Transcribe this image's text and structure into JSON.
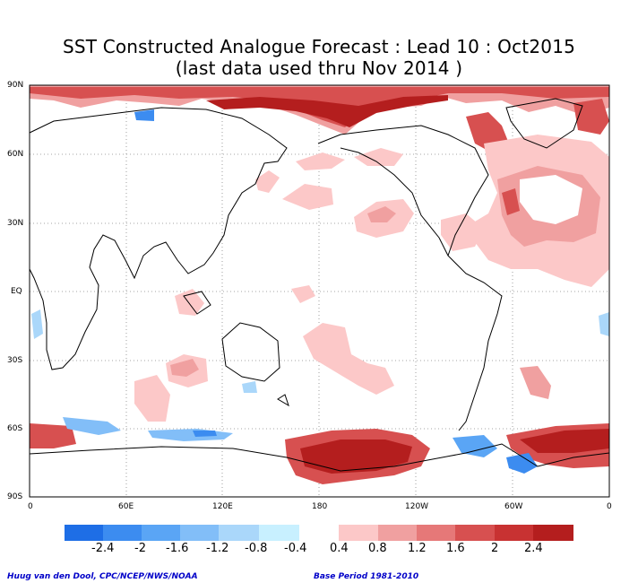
{
  "title_line1": "SST Constructed Analogue Forecast : Lead 10 : Oct2015",
  "title_line2": "(last data used thru Nov 2014 )",
  "lat_labels": [
    "90N",
    "60N",
    "30N",
    "EQ",
    "30S",
    "60S",
    "90S"
  ],
  "lon_labels": [
    "0",
    "60E",
    "120E",
    "180",
    "120W",
    "60W",
    "0"
  ],
  "legend": {
    "negative_labels": [
      "-2.4",
      "-2",
      "-1.6",
      "-1.2",
      "-0.8",
      "-0.4"
    ],
    "positive_labels": [
      "0.4",
      "0.8",
      "1.2",
      "1.6",
      "2",
      "2.4"
    ],
    "negative_colors": [
      "#1e6ee6",
      "#3c8cf0",
      "#5aa5f5",
      "#82bef8",
      "#aad7fa",
      "#c8f0ff"
    ],
    "positive_colors": [
      "#fcc8c8",
      "#f0a0a0",
      "#e67878",
      "#d75050",
      "#c83232",
      "#b41e1e"
    ]
  },
  "credit_left": "Huug van den Dool, CPC/NCEP/NWS/NOAA",
  "credit_right": "Base Period 1981-2010"
}
